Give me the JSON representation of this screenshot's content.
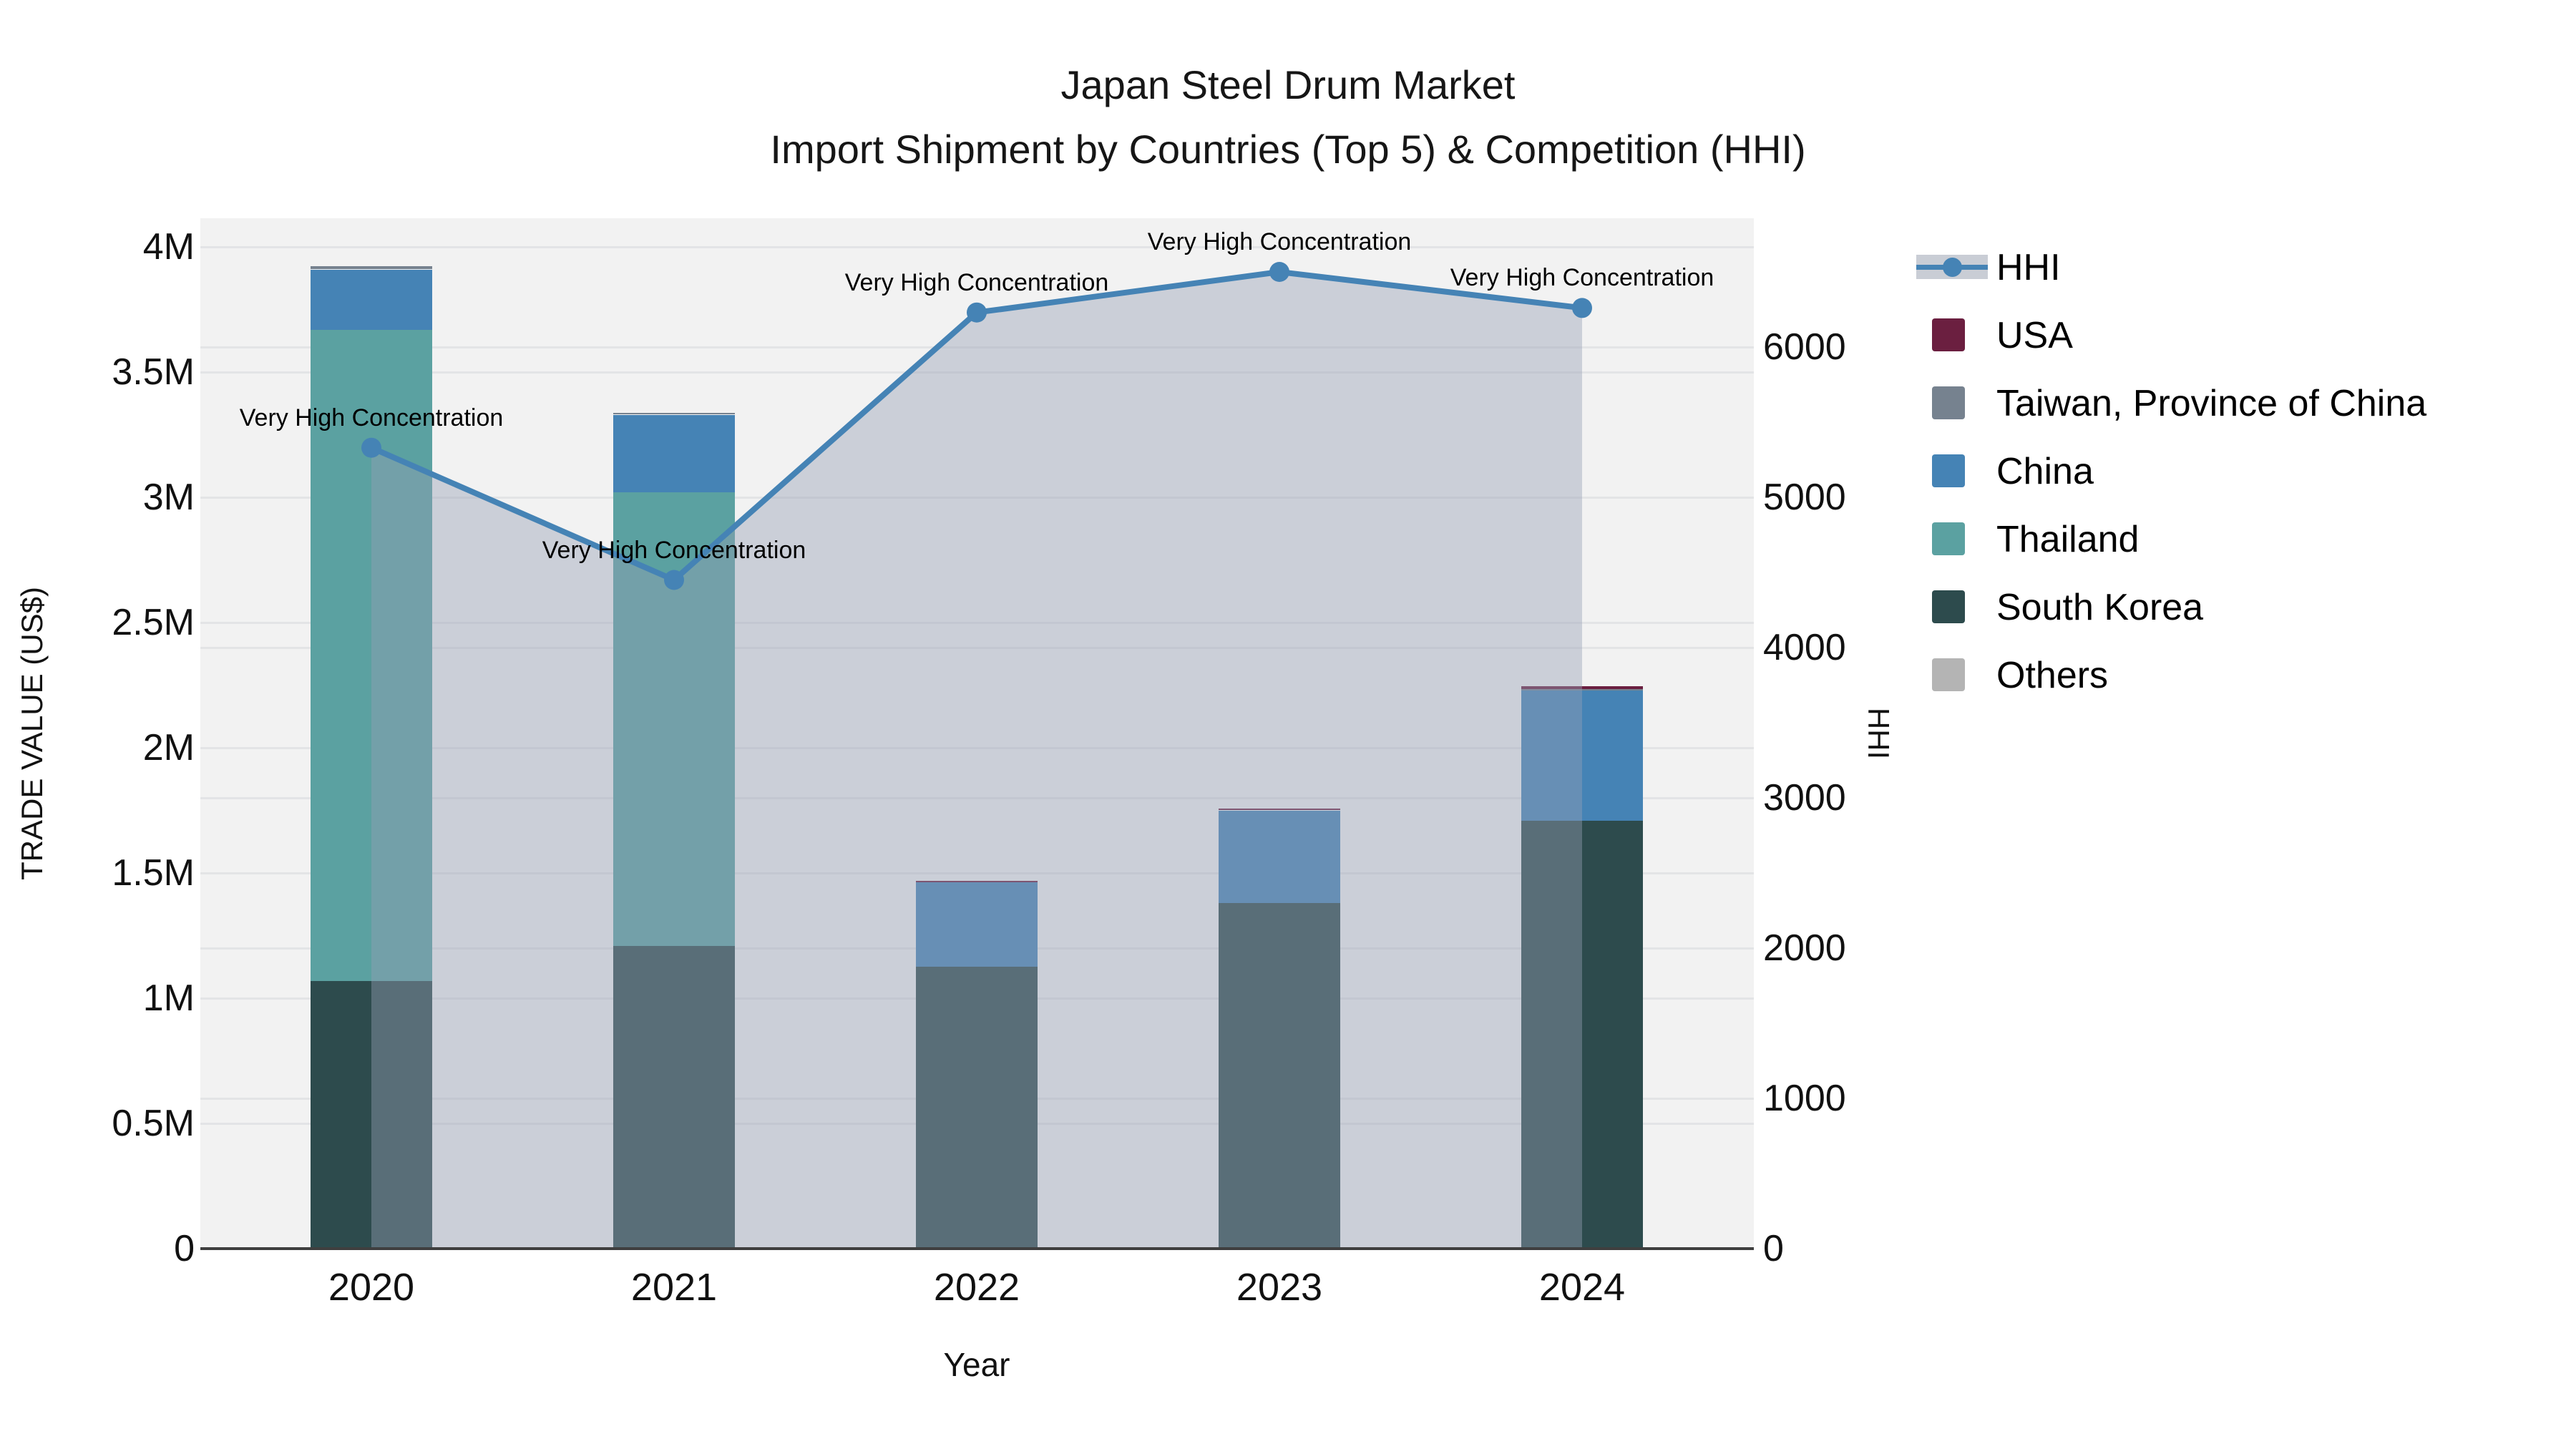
{
  "title": {
    "line1": "Japan Steel Drum Market",
    "line2": "Import Shipment by Countries (Top 5) & Competition (HHI)"
  },
  "y_left_axis": {
    "title": "TRADE VALUE (US$)",
    "ticks": [
      "0",
      "0.5M",
      "1M",
      "1.5M",
      "2M",
      "2.5M",
      "3M",
      "3.5M",
      "4M"
    ]
  },
  "y_right_axis": {
    "title": "HHI",
    "ticks": [
      "0",
      "1000",
      "2000",
      "3000",
      "4000",
      "5000",
      "6000"
    ]
  },
  "x_axis": {
    "title": "Year",
    "ticks": [
      "2020",
      "2021",
      "2022",
      "2023",
      "2024"
    ]
  },
  "legend": {
    "items": [
      {
        "label": "HHI",
        "type": "line",
        "color": "#4583b5"
      },
      {
        "label": "USA",
        "type": "square",
        "color": "#6b1f40"
      },
      {
        "label": "Taiwan, Province of China",
        "type": "square",
        "color": "#76828f"
      },
      {
        "label": "China",
        "type": "square",
        "color": "#4583b5"
      },
      {
        "label": "Thailand",
        "type": "square",
        "color": "#5ba1a1"
      },
      {
        "label": "South Korea",
        "type": "square",
        "color": "#2d4b4d"
      },
      {
        "label": "Others",
        "type": "square",
        "color": "#b4b4b4"
      }
    ]
  },
  "colors": {
    "plot_background": "#f2f2f2",
    "gridline": "#e3e4e6",
    "hhi_line": "#4583b5",
    "hhi_area_fill": "rgba(150,160,180,0.42)",
    "axis_line": "#3f3f3f"
  },
  "chart_data": [
    {
      "type": "bar",
      "stacked": true,
      "title": "Japan Steel Drum Market — Import Shipment by Countries (Top 5)",
      "categories": [
        "2020",
        "2021",
        "2022",
        "2023",
        "2024"
      ],
      "series": [
        {
          "name": "South Korea",
          "color": "#2d4b4d",
          "values": [
            1070000,
            1210000,
            1125000,
            1380000,
            1710000
          ]
        },
        {
          "name": "Thailand",
          "color": "#5ba1a1",
          "values": [
            2600000,
            1810000,
            0,
            0,
            0
          ]
        },
        {
          "name": "China",
          "color": "#4583b5",
          "values": [
            240000,
            310000,
            340000,
            370000,
            520000
          ]
        },
        {
          "name": "Taiwan, Province of China",
          "color": "#76828f",
          "values": [
            13000,
            6000,
            0,
            0,
            5000
          ]
        },
        {
          "name": "USA",
          "color": "#6b1f40",
          "values": [
            0,
            0,
            5000,
            6000,
            12000
          ]
        },
        {
          "name": "Others",
          "color": "#b4b4b4",
          "values": [
            0,
            0,
            0,
            0,
            0
          ]
        }
      ],
      "totals_approx": [
        3923000,
        3336000,
        1470000,
        1756000,
        2247000
      ],
      "xlabel": "Year",
      "ylabel": "TRADE VALUE (US$)",
      "ylim": [
        0,
        4110000
      ],
      "grid": true,
      "legend_position": "right"
    },
    {
      "type": "line",
      "name": "HHI",
      "x": [
        "2020",
        "2021",
        "2022",
        "2023",
        "2024"
      ],
      "values": [
        5330,
        4450,
        6230,
        6500,
        6260
      ],
      "yaxis": "right",
      "ylabel": "HHI",
      "ylim": [
        0,
        6860
      ],
      "area_fill": true,
      "markers": true,
      "annotations": [
        "Very High Concentration",
        "Very High Concentration",
        "Very High Concentration",
        "Very High Concentration",
        "Very High Concentration"
      ]
    }
  ]
}
